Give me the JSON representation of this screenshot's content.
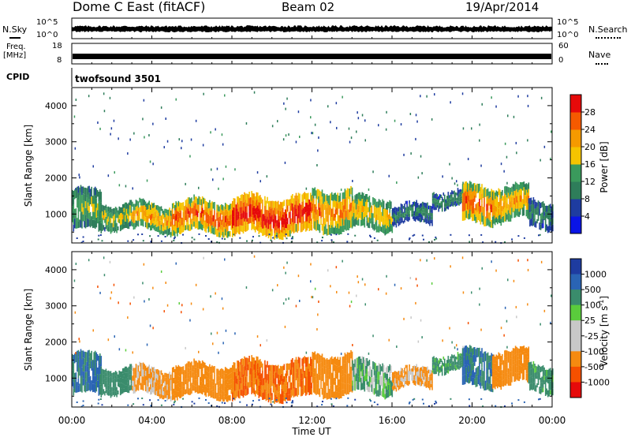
{
  "header": {
    "station": "Dome C East (fitACF)",
    "beam": "Beam 02",
    "date": "19/Apr/2014"
  },
  "sky_panel": {
    "left_label": "N.Sky",
    "right_label": "N.Search",
    "left_ticks": [
      "10^5",
      "10^0"
    ],
    "right_ticks": [
      "10^5",
      "10^0"
    ]
  },
  "freq_panel": {
    "left_label_line1": "Freq.",
    "left_label_line2": "[MHz]",
    "right_label": "Nave",
    "left_ticks": [
      "18",
      "8"
    ],
    "right_ticks": [
      "60",
      "0"
    ]
  },
  "cpid": {
    "label": "CPID",
    "value": "twofsound 3501"
  },
  "colors": {
    "power_scale": [
      "#0a14e6",
      "#1e3ca0",
      "#2e7d5a",
      "#3a9a5c",
      "#f5c400",
      "#f59a00",
      "#f55a00",
      "#e60a0a"
    ],
    "velocity_scale": [
      "#e60a0a",
      "#f55000",
      "#f58a10",
      "#c8c8c8",
      "#c8c8c8",
      "#5acc3c",
      "#3a8c6c",
      "#2a64b4",
      "#1e3ca0"
    ]
  },
  "chart_data": [
    {
      "type": "heatmap",
      "name": "power",
      "xlabel": "",
      "ylabel": "Slant Range [km]",
      "x_ticks": [
        "00:00",
        "04:00",
        "08:00",
        "12:00",
        "16:00",
        "20:00",
        "00:00"
      ],
      "xlim": [
        0,
        24
      ],
      "ylim": [
        200,
        4500
      ],
      "y_ticks": [
        1000,
        2000,
        3000,
        4000
      ],
      "colorbar": {
        "label": "Power [dB]",
        "range": [
          0,
          32
        ],
        "ticks": [
          4,
          8,
          12,
          16,
          20,
          24,
          28
        ]
      },
      "bands": [
        {
          "t": [
            0.0,
            1.5
          ],
          "r": [
            500,
            1700
          ],
          "value": 14
        },
        {
          "t": [
            1.5,
            3.0
          ],
          "r": [
            600,
            1350
          ],
          "value": 16
        },
        {
          "t": [
            3.0,
            5.0
          ],
          "r": [
            500,
            1300
          ],
          "value": 20
        },
        {
          "t": [
            5.0,
            8.0
          ],
          "r": [
            450,
            1400
          ],
          "value": 24
        },
        {
          "t": [
            8.0,
            12.0
          ],
          "r": [
            400,
            1500
          ],
          "value": 28
        },
        {
          "t": [
            12.0,
            14.0
          ],
          "r": [
            500,
            1700
          ],
          "value": 22
        },
        {
          "t": [
            14.0,
            16.0
          ],
          "r": [
            550,
            1500
          ],
          "value": 18
        },
        {
          "t": [
            16.0,
            18.0
          ],
          "r": [
            700,
            1300
          ],
          "value": 10
        },
        {
          "t": [
            18.0,
            19.5
          ],
          "r": [
            1200,
            1700
          ],
          "value": 10
        },
        {
          "t": [
            19.5,
            21.0
          ],
          "r": [
            700,
            1800
          ],
          "value": 24
        },
        {
          "t": [
            21.0,
            22.8
          ],
          "r": [
            800,
            1800
          ],
          "value": 20
        },
        {
          "t": [
            22.8,
            24.0
          ],
          "r": [
            600,
            1400
          ],
          "value": 10
        }
      ]
    },
    {
      "type": "heatmap",
      "name": "velocity",
      "xlabel": "Time UT",
      "ylabel": "Slant Range [km]",
      "x_ticks": [
        "00:00",
        "04:00",
        "08:00",
        "12:00",
        "16:00",
        "20:00",
        "00:00"
      ],
      "xlim": [
        0,
        24
      ],
      "ylim": [
        200,
        4500
      ],
      "y_ticks": [
        1000,
        2000,
        3000,
        4000
      ],
      "colorbar": {
        "label": "Velocity [m s^-1]",
        "ticks": [
          "1000",
          "500",
          "100",
          "25",
          "-25",
          "-100",
          "-500",
          "-1000"
        ]
      },
      "bands": [
        {
          "t": [
            0.0,
            1.5
          ],
          "r": [
            500,
            1700
          ],
          "value": 300
        },
        {
          "t": [
            1.5,
            3.0
          ],
          "r": [
            600,
            1350
          ],
          "value": 200
        },
        {
          "t": [
            3.0,
            5.0
          ],
          "r": [
            500,
            1300
          ],
          "value": -50
        },
        {
          "t": [
            5.0,
            8.0
          ],
          "r": [
            450,
            1400
          ],
          "value": -200
        },
        {
          "t": [
            8.0,
            12.0
          ],
          "r": [
            400,
            1500
          ],
          "value": -300
        },
        {
          "t": [
            12.0,
            14.0
          ],
          "r": [
            500,
            1700
          ],
          "value": -100
        },
        {
          "t": [
            14.0,
            16.0
          ],
          "r": [
            550,
            1500
          ],
          "value": 50
        },
        {
          "t": [
            16.0,
            18.0
          ],
          "r": [
            700,
            1300
          ],
          "value": -50
        },
        {
          "t": [
            18.0,
            19.5
          ],
          "r": [
            1200,
            1700
          ],
          "value": 100
        },
        {
          "t": [
            19.5,
            21.0
          ],
          "r": [
            700,
            1800
          ],
          "value": 300
        },
        {
          "t": [
            21.0,
            22.8
          ],
          "r": [
            800,
            1800
          ],
          "value": -200
        },
        {
          "t": [
            22.8,
            24.0
          ],
          "r": [
            600,
            1400
          ],
          "value": 120
        }
      ]
    }
  ]
}
